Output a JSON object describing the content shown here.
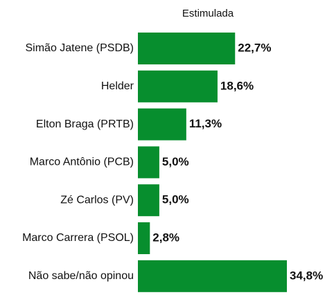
{
  "chart_data": {
    "type": "hbar",
    "title": "Estimulada",
    "categories": [
      "Simão Jatene (PSDB)",
      "Helder",
      "Elton Braga (PRTB)",
      "Marco Antônio (PCB)",
      "Zé Carlos (PV)",
      "Marco Carrera (PSOL)",
      "Não sabe/não opinou"
    ],
    "values": [
      22.7,
      18.6,
      11.3,
      5.0,
      5.0,
      2.8,
      34.8
    ],
    "value_labels": [
      "22,7%",
      "18,6%",
      "11,3%",
      "5,0%",
      "5,0%",
      "2,8%",
      "34,8%"
    ],
    "color": "#078e2e"
  }
}
